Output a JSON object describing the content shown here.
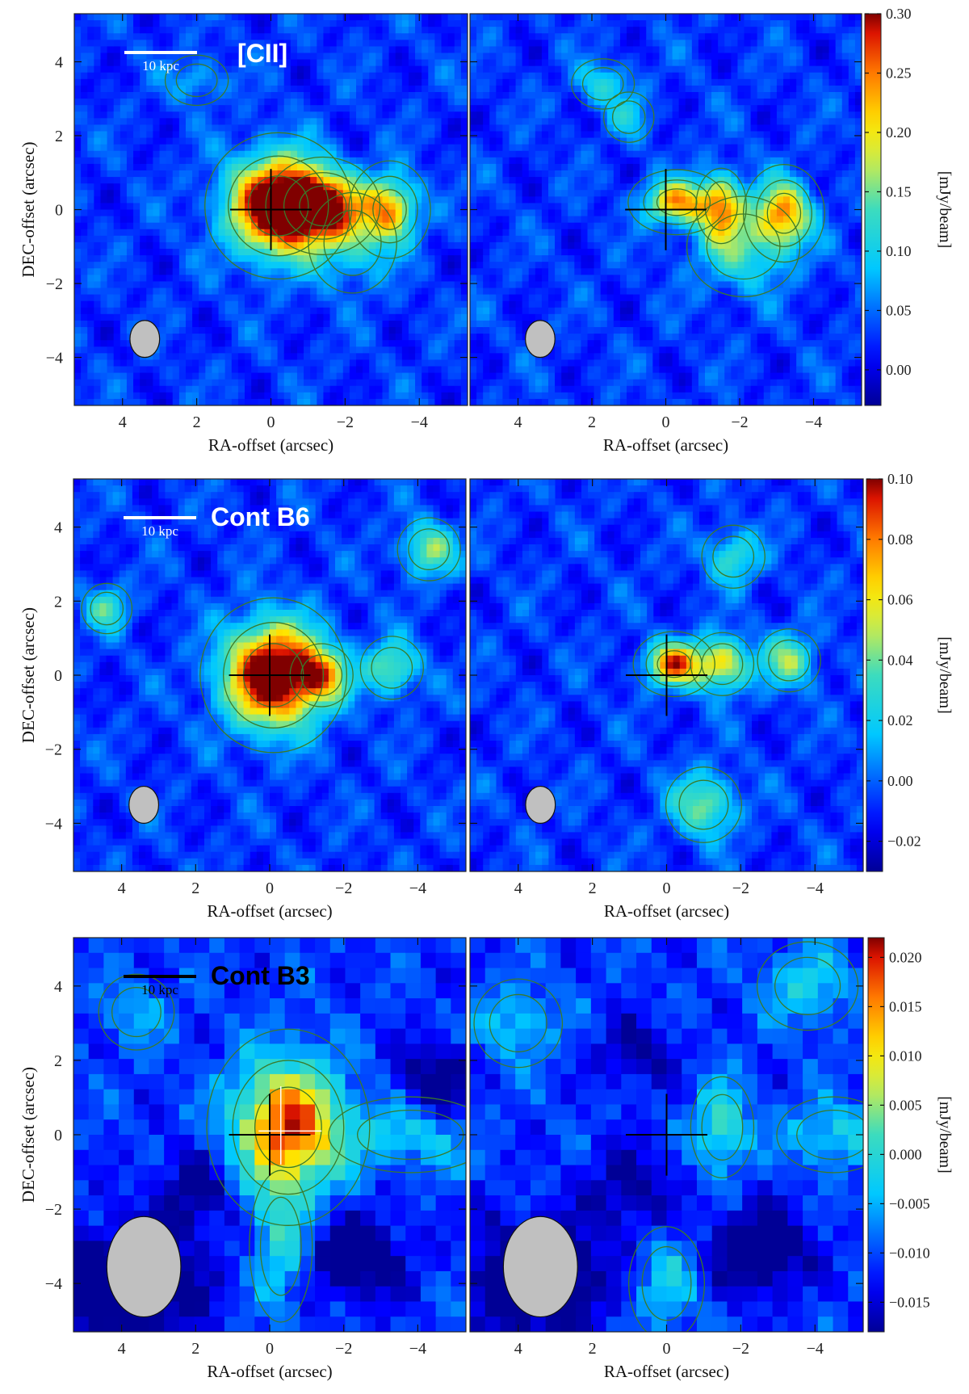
{
  "figure": {
    "xlabel": "RA-offset (arcsec)",
    "ylabel": "DEC-offset (arcsec)",
    "unit_label": "[mJy/beam]",
    "scale_bar_label": "10 kpc"
  },
  "chart_data": [
    {
      "type": "heatmap",
      "row": "[CII]",
      "tag": "[CII]",
      "xlabel": "RA-offset (arcsec)",
      "ylabel": "DEC-offset (arcsec)",
      "xlim": [
        5.3,
        -5.3
      ],
      "ylim": [
        -5.3,
        5.3
      ],
      "x_ticks": [
        4,
        2,
        0,
        -2,
        -4
      ],
      "y_ticks": [
        4,
        2,
        0,
        -2,
        -4
      ],
      "colorbar": {
        "label": "[mJy/beam]",
        "range": [
          -0.03,
          0.3
        ],
        "ticks": [
          0.0,
          0.05,
          0.1,
          0.15,
          0.2,
          0.25,
          0.3
        ]
      },
      "scale_bar": "10 kpc",
      "panels": [
        {
          "name": "left",
          "features": [
            {
              "x": -0.2,
              "y": 0.1,
              "peak": 0.34,
              "sx": 0.9,
              "sy": 0.9
            },
            {
              "x": -1.4,
              "y": 0.1,
              "peak": 0.22,
              "sx": 0.7,
              "sy": 0.6
            },
            {
              "x": -3.2,
              "y": 0.0,
              "peak": 0.2,
              "sx": 0.5,
              "sy": 0.6
            },
            {
              "x": -2.2,
              "y": -0.9,
              "peak": 0.08,
              "sx": 0.7,
              "sy": 0.8
            },
            {
              "x": 2.0,
              "y": 3.5,
              "peak": 0.06,
              "sx": 0.5,
              "sy": 0.4
            }
          ]
        },
        {
          "name": "right",
          "features": [
            {
              "x": -0.3,
              "y": 0.2,
              "peak": 0.2,
              "sx": 0.6,
              "sy": 0.4
            },
            {
              "x": -1.5,
              "y": 0.1,
              "peak": 0.18,
              "sx": 0.4,
              "sy": 0.6
            },
            {
              "x": -3.2,
              "y": -0.1,
              "peak": 0.2,
              "sx": 0.5,
              "sy": 0.6
            },
            {
              "x": -2.1,
              "y": -1.0,
              "peak": 0.1,
              "sx": 0.9,
              "sy": 0.8
            },
            {
              "x": 1.7,
              "y": 3.4,
              "peak": 0.08,
              "sx": 0.5,
              "sy": 0.4
            },
            {
              "x": 1.0,
              "y": 2.5,
              "peak": 0.06,
              "sx": 0.4,
              "sy": 0.4
            }
          ]
        }
      ]
    },
    {
      "type": "heatmap",
      "row": "Cont B6",
      "tag": "Cont B6",
      "xlabel": "RA-offset (arcsec)",
      "ylabel": "DEC-offset (arcsec)",
      "xlim": [
        5.3,
        -5.3
      ],
      "ylim": [
        -5.3,
        5.3
      ],
      "x_ticks": [
        4,
        2,
        0,
        -2,
        -4
      ],
      "y_ticks": [
        4,
        2,
        0,
        -2,
        -4
      ],
      "colorbar": {
        "label": "[mJy/beam]",
        "range": [
          -0.03,
          0.1
        ],
        "ticks": [
          -0.02,
          0.0,
          0.02,
          0.04,
          0.06,
          0.08,
          0.1
        ]
      },
      "scale_bar": "10 kpc",
      "panels": [
        {
          "name": "left",
          "features": [
            {
              "x": -0.1,
              "y": 0.0,
              "peak": 0.13,
              "sx": 0.9,
              "sy": 0.95
            },
            {
              "x": -1.4,
              "y": 0.0,
              "peak": 0.06,
              "sx": 0.5,
              "sy": 0.5
            },
            {
              "x": -3.3,
              "y": 0.2,
              "peak": 0.05,
              "sx": 0.5,
              "sy": 0.5
            },
            {
              "x": -4.3,
              "y": 3.4,
              "peak": 0.05,
              "sx": 0.5,
              "sy": 0.5
            },
            {
              "x": 4.4,
              "y": 1.8,
              "peak": 0.04,
              "sx": 0.4,
              "sy": 0.4
            }
          ]
        },
        {
          "name": "right",
          "features": [
            {
              "x": -0.2,
              "y": 0.3,
              "peak": 0.09,
              "sx": 0.5,
              "sy": 0.4
            },
            {
              "x": -1.5,
              "y": 0.3,
              "peak": 0.07,
              "sx": 0.5,
              "sy": 0.5
            },
            {
              "x": -3.3,
              "y": 0.4,
              "peak": 0.05,
              "sx": 0.5,
              "sy": 0.5
            },
            {
              "x": -1.0,
              "y": -3.5,
              "peak": 0.05,
              "sx": 0.6,
              "sy": 0.6
            },
            {
              "x": -1.8,
              "y": 3.2,
              "peak": 0.04,
              "sx": 0.5,
              "sy": 0.5
            }
          ]
        }
      ]
    },
    {
      "type": "heatmap",
      "row": "Cont B3",
      "tag": "Cont B3",
      "xlabel": "RA-offset (arcsec)",
      "ylabel": "DEC-offset (arcsec)",
      "xlim": [
        5.3,
        -5.3
      ],
      "ylim": [
        -5.3,
        5.3
      ],
      "x_ticks": [
        4,
        2,
        0,
        -2,
        -4
      ],
      "y_ticks": [
        4,
        2,
        0,
        -2,
        -4
      ],
      "colorbar": {
        "label": "[mJy/beam]",
        "range": [
          -0.018,
          0.022
        ],
        "ticks": [
          -0.015,
          -0.01,
          -0.005,
          0.0,
          0.005,
          0.01,
          0.015,
          0.02
        ]
      },
      "scale_bar": "10 kpc",
      "panels": [
        {
          "name": "left",
          "features": [
            {
              "x": -0.5,
              "y": 0.2,
              "peak": 0.03,
              "sx": 1.0,
              "sy": 1.2
            },
            {
              "x": -0.3,
              "y": -3.0,
              "peak": 0.01,
              "sx": 0.5,
              "sy": 1.2
            },
            {
              "x": -3.8,
              "y": 0.0,
              "peak": 0.008,
              "sx": 1.3,
              "sy": 0.6
            },
            {
              "x": 3.8,
              "y": -4.0,
              "peak": -0.016,
              "sx": 1.3,
              "sy": 1.0
            },
            {
              "x": -2.4,
              "y": -3.3,
              "peak": -0.012,
              "sx": 0.9,
              "sy": 0.8
            },
            {
              "x": -4.5,
              "y": 1.5,
              "peak": -0.01,
              "sx": 0.7,
              "sy": 0.7
            },
            {
              "x": 2.0,
              "y": -1.5,
              "peak": -0.008,
              "sx": 0.8,
              "sy": 0.8
            },
            {
              "x": 3.6,
              "y": 3.3,
              "peak": 0.006,
              "sx": 0.6,
              "sy": 0.6
            }
          ]
        },
        {
          "name": "right",
          "features": [
            {
              "x": -1.5,
              "y": 0.2,
              "peak": 0.013,
              "sx": 0.5,
              "sy": 0.8
            },
            {
              "x": -4.5,
              "y": 0.0,
              "peak": 0.009,
              "sx": 0.9,
              "sy": 0.6
            },
            {
              "x": -3.8,
              "y": 4.0,
              "peak": 0.009,
              "sx": 0.8,
              "sy": 0.7
            },
            {
              "x": 4.0,
              "y": 3.0,
              "peak": 0.008,
              "sx": 0.7,
              "sy": 0.7
            },
            {
              "x": 0.0,
              "y": -4.0,
              "peak": 0.008,
              "sx": 0.6,
              "sy": 0.9
            },
            {
              "x": 3.5,
              "y": -3.9,
              "peak": -0.016,
              "sx": 1.2,
              "sy": 1.0
            },
            {
              "x": -2.5,
              "y": -3.1,
              "peak": -0.013,
              "sx": 0.9,
              "sy": 0.8
            },
            {
              "x": 0.8,
              "y": 2.2,
              "peak": -0.008,
              "sx": 0.7,
              "sy": 0.6
            },
            {
              "x": 1.0,
              "y": -1.5,
              "peak": -0.008,
              "sx": 0.8,
              "sy": 0.8
            }
          ]
        }
      ]
    }
  ]
}
